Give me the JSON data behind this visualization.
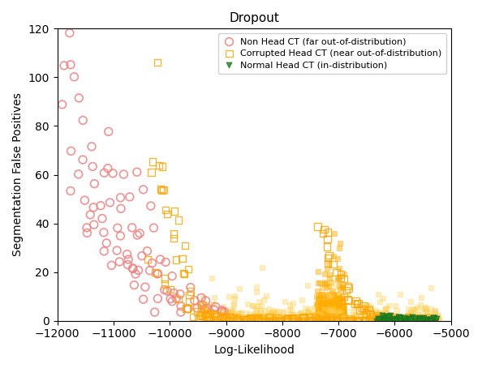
{
  "title": "Dropout",
  "xlabel": "Log-Likelihood",
  "ylabel": "Segmentation False Positives",
  "xlim": [
    -12000,
    -5000
  ],
  "ylim": [
    0,
    120
  ],
  "xticks": [
    -12000,
    -11000,
    -10000,
    -9000,
    -8000,
    -7000,
    -6000,
    -5000
  ],
  "yticks": [
    0,
    20,
    40,
    60,
    80,
    100,
    120
  ],
  "series": [
    {
      "label": "Non Head CT (far out-of-distribution)",
      "marker": "o",
      "facecolor": "none",
      "edgecolor": "#F08080",
      "markersize": 7,
      "linewidth": 1.2,
      "seed": 1,
      "x_centers": [
        -11900,
        -11800,
        -11800,
        -11750,
        -11700,
        -11700,
        -11650,
        -11600,
        -11600,
        -11550,
        -11500,
        -11500,
        -11500,
        -11450,
        -11400,
        -11400,
        -11400,
        -11350,
        -11300,
        -11300,
        -11250,
        -11200,
        -11200,
        -11200,
        -11150,
        -11100,
        -11100,
        -11100,
        -11050,
        -11000,
        -11000,
        -11000,
        -10950,
        -10900,
        -10900,
        -10900,
        -10850,
        -10800,
        -10800,
        -10800,
        -10750,
        -10700,
        -10700,
        -10700,
        -10650,
        -10600,
        -10600,
        -10600,
        -10550,
        -10500,
        -10500,
        -10500,
        -10450,
        -10400,
        -10400,
        -10400,
        -10350,
        -10300,
        -10300,
        -10300,
        -10250,
        -10200,
        -10200,
        -10200,
        -10150,
        -10100,
        -10100,
        -10050,
        -10000,
        -10000,
        -9950,
        -9900,
        -9900,
        -9850,
        -9800,
        -9750,
        -9700,
        -9650,
        -9600,
        -9550,
        -9500,
        -9450,
        -9400,
        -9350,
        -9300,
        -9250,
        -9200,
        -9150,
        -9100,
        -9050
      ],
      "y_centers": [
        90,
        52,
        105,
        118,
        70,
        106,
        99,
        60,
        93,
        82,
        50,
        36,
        65,
        72,
        37,
        63,
        45,
        55,
        46,
        38,
        43,
        33,
        46,
        28,
        79,
        22,
        60,
        35,
        62,
        30,
        50,
        62,
        52,
        25,
        45,
        38,
        60,
        22,
        36,
        28,
        38,
        20,
        25,
        23,
        50,
        20,
        35,
        15,
        60,
        20,
        35,
        55,
        28,
        15,
        30,
        10,
        48,
        20,
        38,
        5,
        25,
        18,
        25,
        10,
        20,
        12,
        25,
        12,
        10,
        8,
        10,
        8,
        18,
        5,
        12,
        5,
        15,
        5,
        8,
        5,
        10,
        5,
        8,
        5,
        5,
        5,
        4,
        5,
        5,
        4
      ]
    },
    {
      "label": "Corrupted Head CT (near out-of-distribution)",
      "marker": "s",
      "facecolor": "none",
      "edgecolor": "#FFA500",
      "markersize": 6,
      "linewidth": 0.9,
      "seed": 2,
      "x_centers": [
        -10300,
        -10250,
        -10200,
        -10150,
        -10100,
        -10050,
        -10000,
        -9950,
        -9900,
        -9850,
        -9800,
        -9750,
        -9700,
        -9650,
        -9600,
        -9550,
        -9500,
        -9450,
        -9400,
        -9350,
        -9300,
        -9250,
        -9200,
        -9150,
        -9100,
        -9050,
        -9000,
        -8950,
        -8900,
        -8850,
        -8800,
        -8750,
        -8700,
        -8650,
        -8600,
        -8550,
        -8500,
        -8450,
        -8400,
        -8350,
        -8300,
        -8250,
        -8200,
        -8150,
        -8100,
        -8050,
        -8000,
        -7950,
        -7900,
        -7850,
        -7800,
        -7750,
        -7700,
        -7650,
        -7600,
        -7550,
        -7500,
        -7450,
        -7400,
        -7350,
        -7300,
        -7250,
        -7200,
        -7150,
        -7100,
        -7050,
        -7000,
        -6950,
        -6900,
        -6850,
        -6800,
        -6750,
        -6700,
        -6650,
        -6600,
        -6550,
        -6500,
        -6450,
        -6400,
        -6350,
        -6300,
        -6250,
        -6200,
        -6150,
        -6100,
        -6050,
        -6000,
        -5950,
        -5900,
        -5850,
        -5800,
        -5750,
        -5700,
        -5650,
        -5600,
        -5550,
        -5500,
        -5450,
        -5400,
        -10280,
        -10180,
        -10080,
        -9980,
        -9880,
        -9780,
        -9680,
        -9580,
        -9480,
        -9380,
        -9280,
        -9180,
        -9080,
        -8980,
        -8880,
        -8780,
        -8680,
        -8580,
        -8480,
        -8380,
        -8280,
        -8180,
        -8080,
        -7980,
        -7880,
        -7780,
        -7680,
        -7580,
        -7480,
        -7380,
        -7280,
        -7180,
        -7080,
        -6980,
        -6880,
        -6780,
        -6680,
        -6580,
        -6480,
        -6380,
        -6280,
        -6180,
        -6080,
        -5980,
        -5880,
        -5780,
        -5680,
        -5580,
        -10320,
        -10220,
        -10120,
        -10020,
        -9920,
        -9820,
        -9720,
        -9620,
        -9520,
        -9420,
        -9320,
        -9220,
        -9120,
        -9020,
        -8920,
        -8820,
        -8720,
        -8620,
        -8520,
        -8420,
        -8320,
        -8220,
        -8120,
        -8020,
        -7920,
        -7820,
        -7720,
        -7620,
        -7520,
        -7420,
        -7320,
        -7220,
        -7120,
        -7020,
        -6920,
        -6820,
        -6720,
        -6620,
        -6520,
        -6420,
        -6320,
        -6220,
        -6120,
        -6020,
        -5920,
        -5820,
        -5720,
        -5620,
        -7350,
        -7320,
        -7290,
        -7260,
        -7230,
        -7200,
        -7170,
        -7140,
        -7110,
        -7080,
        -7050,
        -7020,
        -6990,
        -6960,
        -6930,
        -6900,
        -6870,
        -6840,
        -6810,
        -6780,
        -6750,
        -6720,
        -6690,
        -6660,
        -6630,
        -6600,
        -6570,
        -6540,
        -6510,
        -6480,
        -6450,
        -6420,
        -6390,
        -6360,
        -6330,
        -6300,
        -6270,
        -6240,
        -6210,
        -6180,
        -6150,
        -6120,
        -6090,
        -6060,
        -6030,
        -6000,
        -5970,
        -5940,
        -5910,
        -5880,
        -5850,
        -5820,
        -5790,
        -5760,
        -5730,
        -5700,
        -5670,
        -5640,
        -5610,
        -5580
      ],
      "y_centers": [
        66,
        62,
        65,
        55,
        54,
        45,
        45,
        35,
        35,
        26,
        25,
        18,
        18,
        10,
        8,
        5,
        5,
        3,
        3,
        2,
        2,
        1,
        1,
        1,
        1,
        1,
        1,
        0,
        0,
        0,
        0,
        0,
        0,
        0,
        0,
        0,
        0,
        0,
        0,
        0,
        0,
        0,
        0,
        0,
        0,
        0,
        0,
        0,
        0,
        0,
        0,
        0,
        0,
        0,
        0,
        0,
        0,
        0,
        0,
        0,
        0,
        0,
        0,
        0,
        0,
        0,
        0,
        0,
        0,
        0,
        0,
        0,
        0,
        0,
        0,
        0,
        0,
        0,
        0,
        0,
        0,
        0,
        0,
        0,
        0,
        0,
        0,
        0,
        0,
        0,
        0,
        0,
        0,
        0,
        0,
        0,
        0,
        0,
        0,
        105,
        62,
        55,
        45,
        40,
        32,
        22,
        12,
        6,
        3,
        2,
        1,
        1,
        0,
        0,
        0,
        0,
        0,
        0,
        0,
        0,
        0,
        0,
        0,
        0,
        0,
        0,
        0,
        0,
        0,
        0,
        0,
        0,
        0,
        0,
        0,
        0,
        0,
        0,
        0,
        0,
        0,
        0,
        0,
        0,
        0,
        0,
        0,
        25,
        20,
        18,
        15,
        12,
        8,
        5,
        4,
        3,
        2,
        1,
        1,
        1,
        0,
        0,
        0,
        0,
        0,
        0,
        0,
        0,
        0,
        0,
        0,
        0,
        0,
        0,
        0,
        0,
        0,
        0,
        0,
        0,
        0,
        0,
        0,
        0,
        0,
        0,
        0,
        0,
        0,
        0,
        0,
        0,
        0,
        0,
        0,
        40,
        38,
        36,
        35,
        33,
        30,
        28,
        26,
        24,
        22,
        20,
        18,
        17,
        16,
        14,
        13,
        12,
        11,
        10,
        9,
        8,
        7,
        7,
        6,
        5,
        5,
        4,
        4,
        3,
        3,
        3,
        2,
        2,
        2,
        2,
        1,
        1,
        1,
        1,
        1,
        1,
        1,
        0,
        0,
        0,
        0,
        0,
        0,
        0,
        0,
        0,
        0,
        0,
        0,
        0,
        0,
        0,
        0,
        0,
        0
      ]
    },
    {
      "label": "Normal Head CT (in-distribution)",
      "marker": "v",
      "facecolor": "#228B22",
      "edgecolor": "#1A6B1A",
      "markersize": 5,
      "linewidth": 0.6,
      "seed": 3,
      "x_centers": [
        -6300,
        -6250,
        -6200,
        -6180,
        -6160,
        -6140,
        -6120,
        -6100,
        -6080,
        -6060,
        -6040,
        -6020,
        -6000,
        -5980,
        -5960,
        -5940,
        -5920,
        -5900,
        -5880,
        -5860,
        -5840,
        -5820,
        -5800,
        -5780,
        -5760,
        -5740,
        -5720,
        -5700,
        -5680,
        -5660,
        -5640,
        -5620,
        -5600,
        -5580,
        -5560,
        -5540,
        -5520,
        -5500,
        -5480,
        -5460,
        -5440,
        -5420,
        -5400,
        -5380,
        -5360,
        -5340,
        -5320,
        -5300,
        -5280,
        -5260,
        -6280,
        -6240,
        -6200,
        -6160,
        -6120,
        -6080,
        -6040,
        -6000,
        -5960,
        -5920,
        -5880,
        -5840,
        -5800,
        -5760,
        -5720,
        -5680,
        -5640,
        -5600,
        -5560,
        -5520,
        -5480,
        -5440,
        -5400,
        -5360,
        -5320,
        -5280,
        -5240,
        -5200
      ],
      "y_centers": [
        2,
        1,
        2,
        1,
        0,
        1,
        1,
        0,
        1,
        0,
        0,
        0,
        0,
        0,
        0,
        1,
        0,
        0,
        0,
        0,
        0,
        0,
        0,
        0,
        0,
        0,
        0,
        0,
        0,
        0,
        0,
        0,
        0,
        0,
        0,
        0,
        0,
        0,
        0,
        0,
        0,
        0,
        0,
        0,
        0,
        0,
        0,
        0,
        0,
        0,
        1,
        2,
        1,
        1,
        0,
        1,
        0,
        0,
        1,
        0,
        0,
        0,
        0,
        0,
        0,
        0,
        0,
        0,
        0,
        0,
        0,
        0,
        0,
        0,
        0,
        0,
        0,
        0
      ]
    }
  ]
}
